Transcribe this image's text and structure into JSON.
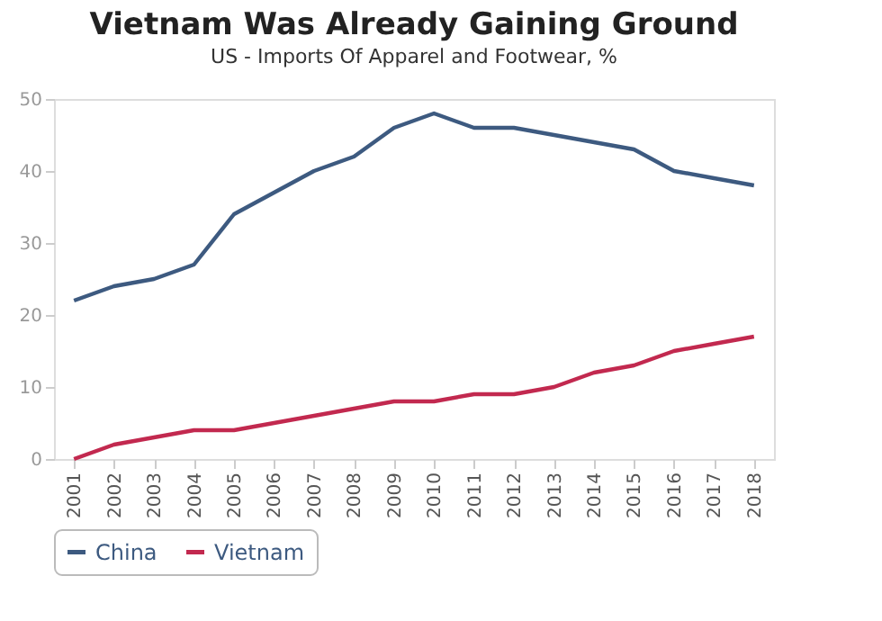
{
  "chart_data": {
    "type": "line",
    "title": "Vietnam Was Already Gaining Ground",
    "subtitle": "US - Imports Of Apparel and Footwear, %",
    "categories": [
      "2001",
      "2002",
      "2003",
      "2004",
      "2005",
      "2006",
      "2007",
      "2008",
      "2009",
      "2010",
      "2011",
      "2012",
      "2013",
      "2014",
      "2015",
      "2016",
      "2017",
      "2018"
    ],
    "series": [
      {
        "name": "China",
        "color": "#3d5a80",
        "values": [
          22,
          24,
          25,
          27,
          34,
          37,
          40,
          42,
          46,
          48,
          46,
          46,
          45,
          44,
          43,
          40,
          39,
          38
        ]
      },
      {
        "name": "Vietnam",
        "color": "#c2294f",
        "values": [
          0,
          2,
          3,
          4,
          4,
          5,
          6,
          7,
          8,
          8,
          9,
          9,
          10,
          12,
          13,
          15,
          16,
          17
        ]
      }
    ],
    "ylim": [
      0,
      50
    ],
    "yticks": [
      0,
      10,
      20,
      30,
      40,
      50
    ],
    "grid": false,
    "legend": "bottom",
    "marker": "none",
    "line_style": "solid"
  }
}
